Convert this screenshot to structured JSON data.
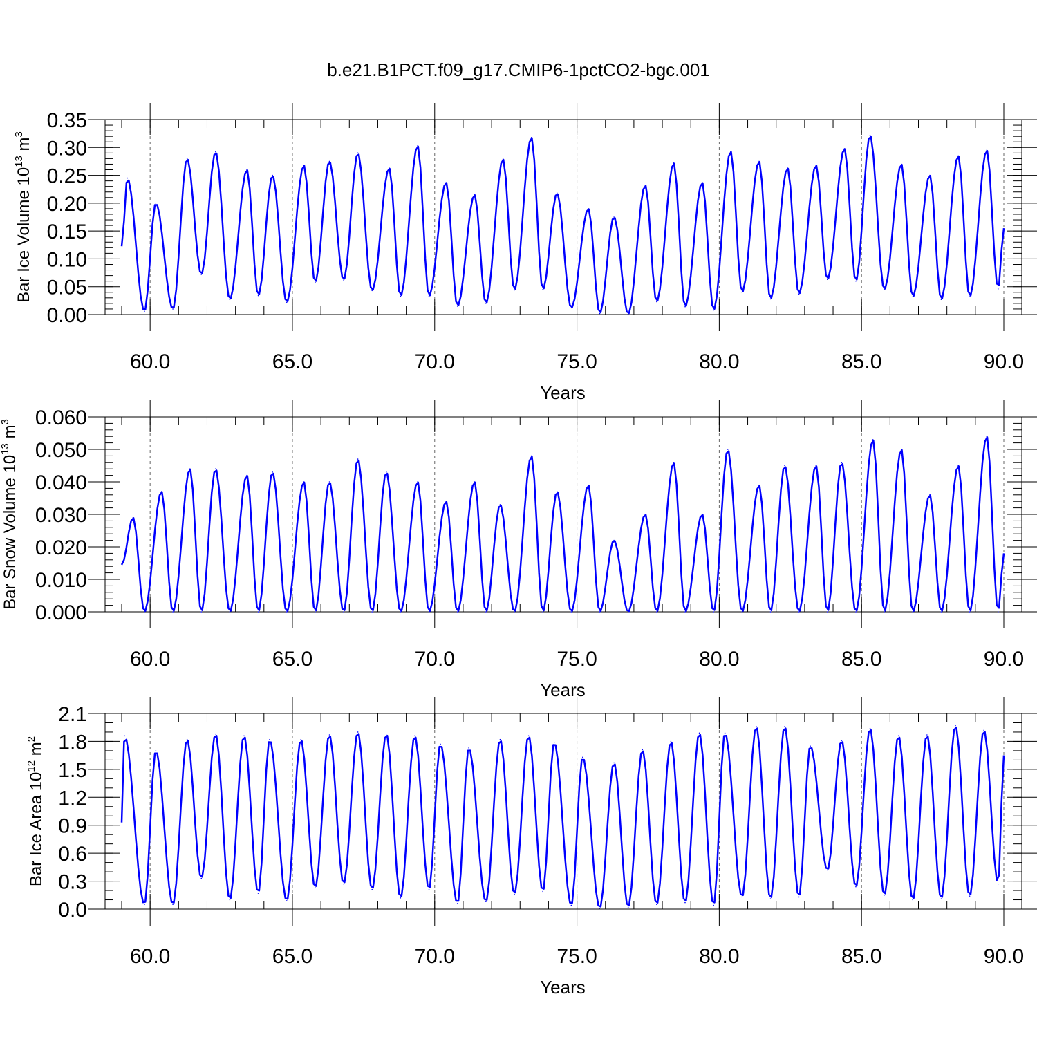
{
  "figure": {
    "title": "b.e21.B1PCT.f09_g17.CMIP6-1pctCO2-bgc.001"
  },
  "chart_data": [
    {
      "type": "line",
      "xlabel": "Years",
      "ylabel": {
        "main": "Bar Ice Volume 10",
        "sup": "13",
        "unit": " m",
        "unit_sup": "3"
      },
      "xlim": [
        59.0,
        90.0
      ],
      "ylim": [
        0.0,
        0.35
      ],
      "x_ticks": [
        60,
        65,
        70,
        75,
        80,
        85,
        90
      ],
      "x_tick_labels": [
        "60.0",
        "65.0",
        "70.0",
        "75.0",
        "80.0",
        "85.0",
        "90.0"
      ],
      "y_ticks": [
        0,
        0.05,
        0.1,
        0.15,
        0.2,
        0.25,
        0.3,
        0.35
      ],
      "y_tick_labels": [
        "0.00",
        "0.05",
        "0.10",
        "0.15",
        "0.20",
        "0.25",
        "0.30",
        "0.35"
      ],
      "y_minor_step": 0.01,
      "x_minor_step": 1,
      "grid": "vertical dashed at major x ticks",
      "line_color": "#0000ff",
      "series": [
        {
          "x_start": 59.0,
          "x_step": 0.0833333,
          "peaks": [
            [
              59.2,
              0.245
            ],
            [
              60.2,
              0.2
            ],
            [
              61.3,
              0.28
            ],
            [
              62.3,
              0.292
            ],
            [
              63.4,
              0.26
            ],
            [
              64.3,
              0.25
            ],
            [
              65.4,
              0.268
            ],
            [
              66.3,
              0.275
            ],
            [
              67.3,
              0.29
            ],
            [
              68.4,
              0.263
            ],
            [
              69.4,
              0.303
            ],
            [
              70.4,
              0.237
            ],
            [
              71.4,
              0.215
            ],
            [
              72.4,
              0.279
            ],
            [
              73.4,
              0.318
            ],
            [
              74.3,
              0.218
            ],
            [
              75.4,
              0.19
            ],
            [
              76.3,
              0.175
            ],
            [
              77.4,
              0.232
            ],
            [
              78.4,
              0.272
            ],
            [
              79.4,
              0.237
            ],
            [
              80.4,
              0.293
            ],
            [
              81.4,
              0.275
            ],
            [
              82.4,
              0.263
            ],
            [
              83.4,
              0.268
            ],
            [
              84.4,
              0.298
            ],
            [
              85.3,
              0.322
            ],
            [
              86.4,
              0.27
            ],
            [
              87.4,
              0.25
            ],
            [
              88.4,
              0.285
            ],
            [
              89.4,
              0.295
            ]
          ],
          "troughs": [
            [
              59.8,
              0.006
            ],
            [
              60.8,
              0.01
            ],
            [
              61.8,
              0.072
            ],
            [
              62.8,
              0.027
            ],
            [
              63.8,
              0.034
            ],
            [
              64.8,
              0.022
            ],
            [
              65.8,
              0.058
            ],
            [
              66.8,
              0.062
            ],
            [
              67.8,
              0.043
            ],
            [
              68.8,
              0.033
            ],
            [
              69.8,
              0.033
            ],
            [
              70.8,
              0.015
            ],
            [
              71.8,
              0.02
            ],
            [
              72.8,
              0.044
            ],
            [
              73.8,
              0.045
            ],
            [
              74.8,
              0.012
            ],
            [
              75.8,
              0.002
            ],
            [
              76.8,
              0.001
            ],
            [
              77.8,
              0.023
            ],
            [
              78.8,
              0.014
            ],
            [
              79.8,
              0.008
            ],
            [
              80.8,
              0.04
            ],
            [
              81.8,
              0.028
            ],
            [
              82.8,
              0.037
            ],
            [
              83.8,
              0.063
            ],
            [
              84.8,
              0.06
            ],
            [
              85.8,
              0.045
            ],
            [
              86.8,
              0.032
            ],
            [
              87.8,
              0.027
            ],
            [
              88.8,
              0.032
            ],
            [
              89.8,
              0.046
            ]
          ],
          "end_value": [
            90.0,
            0.155
          ]
        }
      ]
    },
    {
      "type": "line",
      "xlabel": "Years",
      "ylabel": {
        "main": "Bar Snow Volume 10",
        "sup": "13",
        "unit": " m",
        "unit_sup": "3"
      },
      "xlim": [
        59.0,
        90.0
      ],
      "ylim": [
        0.0,
        0.06
      ],
      "x_ticks": [
        60,
        65,
        70,
        75,
        80,
        85,
        90
      ],
      "x_tick_labels": [
        "60.0",
        "65.0",
        "70.0",
        "75.0",
        "80.0",
        "85.0",
        "90.0"
      ],
      "y_ticks": [
        0,
        0.01,
        0.02,
        0.03,
        0.04,
        0.05,
        0.06
      ],
      "y_tick_labels": [
        "0.000",
        "0.010",
        "0.020",
        "0.030",
        "0.040",
        "0.050",
        "0.060"
      ],
      "y_minor_step": 0.002,
      "x_minor_step": 1,
      "grid": "vertical dashed at major x ticks",
      "line_color": "#0000ff",
      "series": [
        {
          "x_start": 59.0,
          "x_step": 0.0833333,
          "peaks": [
            [
              59.4,
              0.029
            ],
            [
              60.4,
              0.037
            ],
            [
              61.4,
              0.044
            ],
            [
              62.3,
              0.044
            ],
            [
              63.4,
              0.042
            ],
            [
              64.3,
              0.043
            ],
            [
              65.4,
              0.04
            ],
            [
              66.3,
              0.04
            ],
            [
              67.3,
              0.047
            ],
            [
              68.3,
              0.043
            ],
            [
              69.4,
              0.04
            ],
            [
              70.4,
              0.034
            ],
            [
              71.4,
              0.04
            ],
            [
              72.3,
              0.033
            ],
            [
              73.4,
              0.048
            ],
            [
              74.3,
              0.037
            ],
            [
              75.4,
              0.039
            ],
            [
              76.3,
              0.022
            ],
            [
              77.4,
              0.03
            ],
            [
              78.4,
              0.046
            ],
            [
              79.4,
              0.03
            ],
            [
              80.3,
              0.05
            ],
            [
              81.4,
              0.039
            ],
            [
              82.3,
              0.045
            ],
            [
              83.4,
              0.045
            ],
            [
              84.3,
              0.046
            ],
            [
              85.4,
              0.053
            ],
            [
              86.4,
              0.05
            ],
            [
              87.4,
              0.036
            ],
            [
              88.4,
              0.045
            ],
            [
              89.4,
              0.054
            ]
          ],
          "troughs": [
            [
              59.8,
              0.0
            ],
            [
              60.8,
              0.0
            ],
            [
              61.8,
              0.0
            ],
            [
              62.8,
              0.0
            ],
            [
              63.8,
              0.0
            ],
            [
              64.8,
              0.0
            ],
            [
              65.8,
              0.0
            ],
            [
              66.8,
              0.0
            ],
            [
              67.8,
              0.0
            ],
            [
              68.8,
              0.0
            ],
            [
              69.8,
              0.0
            ],
            [
              70.8,
              0.0
            ],
            [
              71.8,
              0.0
            ],
            [
              72.8,
              0.0
            ],
            [
              73.8,
              0.0
            ],
            [
              74.8,
              0.0
            ],
            [
              75.8,
              0.0
            ],
            [
              76.8,
              0.0
            ],
            [
              77.8,
              0.0
            ],
            [
              78.8,
              0.0
            ],
            [
              79.8,
              0.0
            ],
            [
              80.8,
              0.0
            ],
            [
              81.8,
              0.0
            ],
            [
              82.8,
              0.0
            ],
            [
              83.8,
              0.0
            ],
            [
              84.8,
              0.0
            ],
            [
              85.8,
              0.0
            ],
            [
              86.8,
              0.0
            ],
            [
              87.8,
              0.0
            ],
            [
              88.8,
              0.0
            ],
            [
              89.8,
              0.0
            ]
          ],
          "end_value": [
            90.0,
            0.018
          ]
        }
      ]
    },
    {
      "type": "line",
      "xlabel": "Years",
      "ylabel": {
        "main": "Bar Ice Area 10",
        "sup": "12",
        "unit": " m",
        "unit_sup": "2"
      },
      "xlim": [
        59.0,
        90.0
      ],
      "ylim": [
        0.0,
        2.1
      ],
      "x_ticks": [
        60,
        65,
        70,
        75,
        80,
        85,
        90
      ],
      "x_tick_labels": [
        "60.0",
        "65.0",
        "70.0",
        "75.0",
        "80.0",
        "85.0",
        "90.0"
      ],
      "y_ticks": [
        0,
        0.3,
        0.6,
        0.9,
        1.2,
        1.5,
        1.8,
        2.1
      ],
      "y_tick_labels": [
        "0.0",
        "0.3",
        "0.6",
        "0.9",
        "1.2",
        "1.5",
        "1.8",
        "2.1"
      ],
      "y_minor_step": 0.1,
      "x_minor_step": 1,
      "grid": "vertical dashed at major x ticks",
      "line_color": "#0000ff",
      "series": [
        {
          "x_start": 59.0,
          "x_step": 0.0833333,
          "peaks": [
            [
              59.1,
              1.86
            ],
            [
              60.2,
              1.7
            ],
            [
              61.3,
              1.82
            ],
            [
              62.3,
              1.88
            ],
            [
              63.3,
              1.86
            ],
            [
              64.2,
              1.82
            ],
            [
              65.3,
              1.82
            ],
            [
              66.3,
              1.87
            ],
            [
              67.3,
              1.9
            ],
            [
              68.3,
              1.88
            ],
            [
              69.3,
              1.86
            ],
            [
              70.2,
              1.77
            ],
            [
              71.2,
              1.73
            ],
            [
              72.3,
              1.82
            ],
            [
              73.3,
              1.86
            ],
            [
              74.2,
              1.79
            ],
            [
              75.2,
              1.63
            ],
            [
              76.3,
              1.57
            ],
            [
              77.3,
              1.71
            ],
            [
              78.3,
              1.8
            ],
            [
              79.3,
              1.89
            ],
            [
              80.2,
              1.89
            ],
            [
              81.3,
              1.96
            ],
            [
              82.3,
              1.96
            ],
            [
              83.2,
              1.75
            ],
            [
              84.3,
              1.81
            ],
            [
              85.3,
              1.94
            ],
            [
              86.3,
              1.86
            ],
            [
              87.3,
              1.87
            ],
            [
              88.3,
              1.97
            ],
            [
              89.3,
              1.92
            ]
          ],
          "troughs": [
            [
              59.8,
              0.05
            ],
            [
              60.8,
              0.05
            ],
            [
              61.8,
              0.33
            ],
            [
              62.8,
              0.1
            ],
            [
              63.8,
              0.17
            ],
            [
              64.8,
              0.09
            ],
            [
              65.8,
              0.23
            ],
            [
              66.8,
              0.27
            ],
            [
              67.8,
              0.21
            ],
            [
              68.8,
              0.12
            ],
            [
              69.8,
              0.21
            ],
            [
              70.8,
              0.06
            ],
            [
              71.8,
              0.08
            ],
            [
              72.8,
              0.16
            ],
            [
              73.8,
              0.19
            ],
            [
              74.8,
              0.04
            ],
            [
              75.8,
              0.01
            ],
            [
              76.8,
              0.02
            ],
            [
              77.8,
              0.05
            ],
            [
              78.8,
              0.07
            ],
            [
              79.8,
              0.04
            ],
            [
              80.8,
              0.13
            ],
            [
              81.8,
              0.11
            ],
            [
              82.8,
              0.13
            ],
            [
              83.8,
              0.42
            ],
            [
              84.8,
              0.24
            ],
            [
              85.8,
              0.15
            ],
            [
              86.8,
              0.1
            ],
            [
              87.8,
              0.11
            ],
            [
              88.8,
              0.14
            ],
            [
              89.8,
              0.27
            ]
          ],
          "end_value": [
            90.0,
            1.65
          ]
        }
      ]
    }
  ]
}
